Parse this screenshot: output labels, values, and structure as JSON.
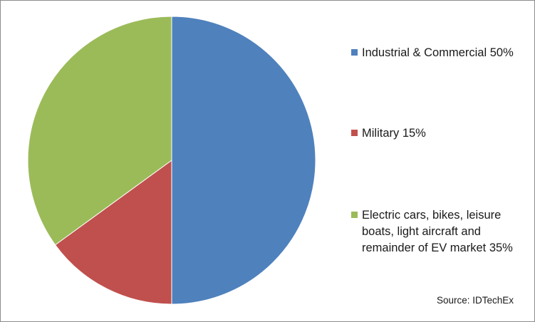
{
  "chart_data": {
    "type": "pie",
    "start_angle_deg": 0,
    "direction": "clockwise",
    "slices": [
      {
        "label": "Industrial & Commercial 50%",
        "value": 50,
        "color": "#4f81bd"
      },
      {
        "label": "Military 15%",
        "value": 15,
        "color": "#c0504d"
      },
      {
        "label": "Electric cars, bikes, leisure boats, light aircraft and remainder of EV market 35%",
        "value": 35,
        "color": "#9bbb59"
      }
    ],
    "legend_position": "right",
    "source": "Source: IDTechEx"
  }
}
